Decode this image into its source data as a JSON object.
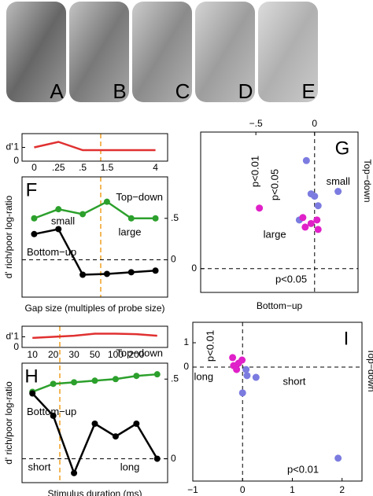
{
  "photo_labels": [
    "A",
    "B",
    "C",
    "D",
    "E"
  ],
  "chart_data": [
    {
      "type": "line",
      "ylabel": "d'",
      "values": [
        1.0,
        1.4,
        0.8,
        0.8,
        0.8,
        0.8
      ],
      "color": "#e03030",
      "ylim": [
        0,
        2
      ],
      "yticks": [
        0,
        1
      ]
    },
    {
      "type": "line",
      "panel": "F",
      "xlabel": "Gap size (multiples of probe size)",
      "ylabel": "d' rich/poor log-ratio",
      "categories": [
        "0",
        ".25",
        ".5",
        "1.5",
        null,
        "4"
      ],
      "series": [
        {
          "name": "Top−down",
          "color": "#2ca02c",
          "values": [
            0.5,
            0.61,
            0.55,
            0.7,
            0.5,
            0.5
          ]
        },
        {
          "name": "Bottom−up",
          "color": "#000000",
          "values": [
            0.31,
            0.37,
            -0.18,
            -0.17,
            -0.15,
            -0.13
          ]
        }
      ],
      "ylim": [
        -0.45,
        1.0
      ],
      "yticks": [
        0,
        {
          "value": 0.5,
          "label": ".5"
        }
      ],
      "annotations": [
        "small",
        "large"
      ]
    },
    {
      "type": "scatter",
      "panel": "G",
      "xlabel": "Bottom−up",
      "ylabel": "Top−down",
      "xlim": [
        -0.97,
        0.37
      ],
      "xticks": [
        {
          "value": -0.5,
          "label": "−.5"
        },
        0
      ],
      "ylim": [
        -0.2,
        1.15
      ],
      "yticks": [
        0
      ],
      "series": [
        {
          "name": "small",
          "color": "#7b7be0",
          "x": [
            -0.07,
            -0.03,
            0,
            0.03,
            0.2,
            -0.13
          ],
          "values": [
            0.91,
            0.63,
            0.61,
            0.53,
            0.65,
            0.41
          ]
        },
        {
          "name": "large",
          "color": "#e020c8",
          "x": [
            -0.47,
            -0.1,
            -0.03,
            0.02,
            -0.08,
            0.03
          ],
          "values": [
            0.51,
            0.43,
            0.38,
            0.41,
            0.35,
            0.33
          ]
        }
      ],
      "annotations": [
        "p<0.05",
        "p<0.01",
        "p<0.05"
      ]
    },
    {
      "type": "line",
      "ylabel": "d'",
      "values": [
        0.9,
        1.0,
        1.1,
        1.3,
        1.3,
        1.25,
        1.1
      ],
      "color": "#e03030",
      "ylim": [
        0,
        2
      ],
      "yticks": [
        0,
        1
      ]
    },
    {
      "type": "line",
      "panel": "H",
      "xlabel": "Stimulus duration (ms)",
      "ylabel": "d' rich/poor log-ratio",
      "categories": [
        "10",
        "20",
        "30",
        "50",
        "100",
        "200",
        null
      ],
      "series": [
        {
          "name": "Top−down",
          "color": "#2ca02c",
          "values": [
            0.42,
            0.47,
            0.48,
            0.49,
            0.5,
            0.52,
            0.53
          ]
        },
        {
          "name": "Bottom−up",
          "color": "#000000",
          "values": [
            0.41,
            0.27,
            -0.09,
            0.22,
            0.14,
            0.22,
            0
          ]
        }
      ],
      "ylim": [
        -0.15,
        0.6
      ],
      "yticks": [
        0,
        {
          "value": 0.5,
          "label": ".5"
        }
      ],
      "annotations": [
        "short",
        "long"
      ]
    },
    {
      "type": "scatter",
      "panel": "I",
      "ylabel": "Top−down",
      "xlim": [
        -1,
        2.4
      ],
      "xticks": [
        {
          "value": -1,
          "label": "−1"
        },
        0,
        1,
        2
      ],
      "ylim": [
        -4.68,
        1.84
      ],
      "yticks": [
        0,
        1
      ],
      "series": [
        {
          "name": "short",
          "color": "#7b7be0",
          "x": [
            0,
            0.09,
            0.27,
            0.07,
            1.92
          ],
          "values": [
            -1.06,
            -0.35,
            -0.42,
            -0.1,
            -3.74
          ]
        },
        {
          "name": "long",
          "color": "#e020c8",
          "x": [
            -0.2,
            -0.18,
            -0.08,
            -0.12,
            -0.01
          ],
          "values": [
            0.39,
            0.06,
            0.16,
            -0.1,
            0.29
          ]
        }
      ],
      "annotations": [
        "p<0.01",
        "p<0.01"
      ]
    }
  ]
}
